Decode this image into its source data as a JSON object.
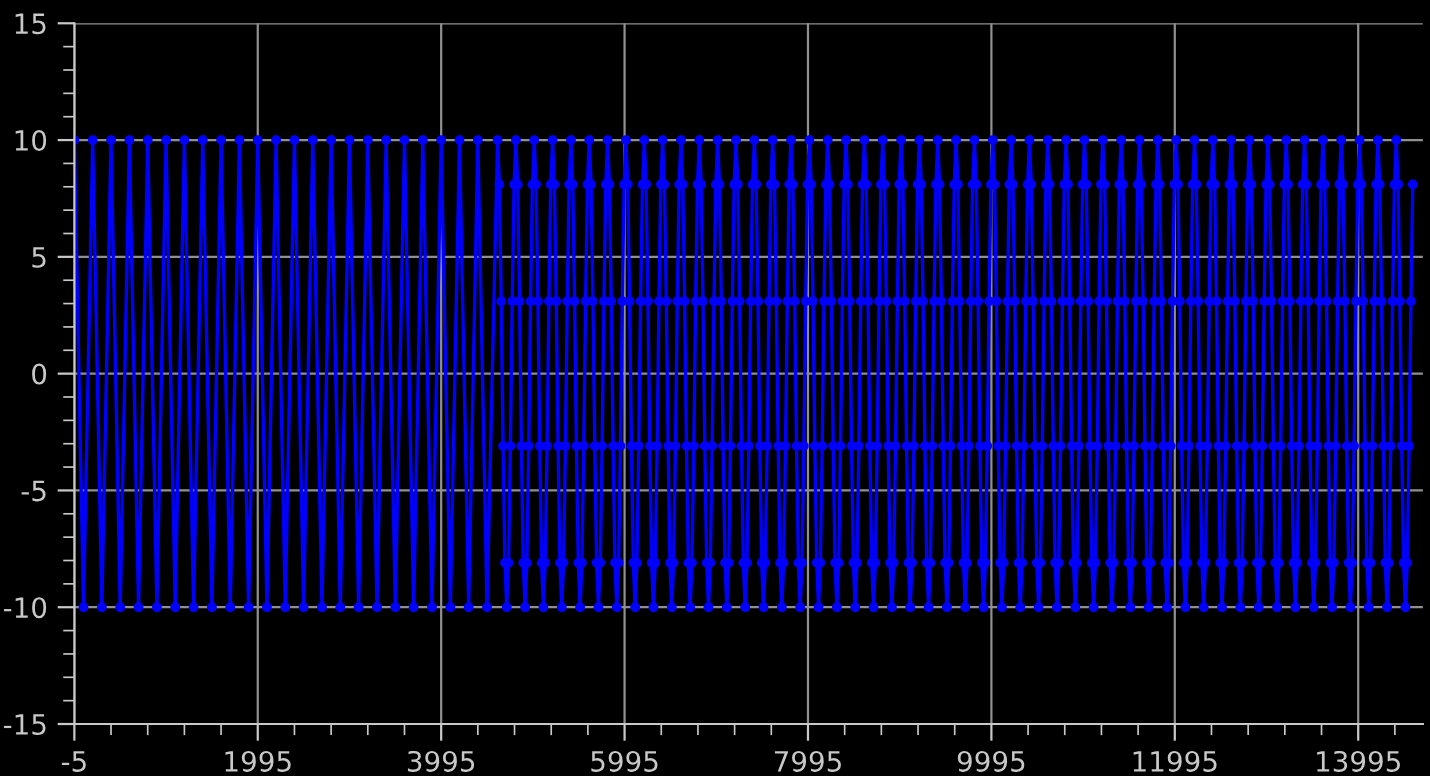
{
  "chart_data": {
    "type": "line",
    "xlim": [
      -5,
      14700
    ],
    "xticks": [
      -5,
      1995,
      3995,
      5995,
      7995,
      9995,
      11995,
      13995
    ],
    "ylim": [
      -15,
      15
    ],
    "yticks": [
      -15,
      -10,
      -5,
      0,
      5,
      10,
      15
    ],
    "grid": true,
    "marker": "circle",
    "line_style": "solid",
    "series": [
      {
        "color": "#0000ff",
        "x": [
          -5,
          95,
          195,
          295,
          395,
          495,
          595,
          695,
          795,
          895,
          995,
          1095,
          1195,
          1295,
          1395,
          1495,
          1595,
          1695,
          1795,
          1895,
          1995,
          2095,
          2195,
          2295,
          2395,
          2495,
          2595,
          2695,
          2795,
          2895,
          2995,
          3095,
          3195,
          3295,
          3395,
          3495,
          3595,
          3695,
          3795,
          3895,
          3995,
          4095,
          4195,
          4295,
          4395,
          4495,
          4610,
          4630,
          4650,
          4670,
          4690,
          4710,
          4730,
          4750,
          4770,
          4790,
          4810,
          4830,
          4850,
          4870,
          4890,
          4910,
          4930,
          4950,
          4970,
          4990,
          5010,
          5030,
          5050,
          5070,
          5090,
          5110,
          5130,
          5150,
          5170,
          5190,
          5210,
          5230,
          5250,
          5270,
          5290,
          5310,
          5330,
          5350,
          5370,
          5390,
          5410,
          5430,
          5450,
          5470,
          5490,
          5510,
          5530,
          5550,
          5570,
          5590,
          5610,
          5630,
          5650,
          5670,
          5690,
          5710,
          5730,
          5750,
          5770,
          5790,
          5810,
          5830,
          5850,
          5870,
          5890,
          5910,
          5930,
          5950,
          5970,
          5990,
          6010,
          6030,
          6050,
          6070,
          6090,
          6110,
          6130,
          6150,
          6170,
          6190,
          6210,
          6230,
          6250,
          6270,
          6290,
          6310,
          6330,
          6350,
          6370,
          6390,
          6410,
          6430,
          6450,
          6470,
          6490,
          6510,
          6530,
          6550,
          6570,
          6590,
          6610,
          6630,
          6650,
          6670,
          6690,
          6710,
          6730,
          6750,
          6770,
          6790,
          6810,
          6830,
          6850,
          6870,
          6890,
          6910,
          6930,
          6950,
          6970,
          6990,
          7010,
          7030,
          7050,
          7070,
          7090,
          7110,
          7130,
          7150,
          7170,
          7190,
          7210,
          7230,
          7250,
          7270,
          7290,
          7310,
          7330,
          7350,
          7370,
          7390,
          7410,
          7430,
          7450,
          7470,
          7490,
          7510,
          7530,
          7550,
          7570,
          7590,
          7610,
          7630,
          7650,
          7670,
          7690,
          7710,
          7730,
          7750,
          7770,
          7790,
          7810,
          7830,
          7850,
          7870,
          7890,
          7910,
          7930,
          7950,
          7970,
          7990,
          8010,
          8030,
          8050,
          8070,
          8090,
          8110,
          8130,
          8150,
          8170,
          8190,
          8210,
          8230,
          8250,
          8270,
          8290,
          8310,
          8330,
          8350,
          8370,
          8390,
          8410,
          8430,
          8450,
          8470,
          8490,
          8510,
          8530,
          8550,
          8570,
          8590,
          8610,
          8630,
          8650,
          8670,
          8690,
          8710,
          8730,
          8750,
          8770,
          8790,
          8810,
          8830,
          8850,
          8870,
          8890,
          8910,
          8930,
          8950,
          8970,
          8990,
          9010,
          9030,
          9050,
          9070,
          9090,
          9110,
          9130,
          9150,
          9170,
          9190,
          9210,
          9230,
          9250,
          9270,
          9290,
          9310,
          9330,
          9350,
          9370,
          9390,
          9410,
          9430,
          9450,
          9470,
          9490,
          9510,
          9530,
          9550,
          9570,
          9590,
          9610,
          9630,
          9650,
          9670,
          9690,
          9710,
          9730,
          9750,
          9770,
          9790,
          9810,
          9830,
          9850,
          9870,
          9890,
          9910,
          9930,
          9950,
          9970,
          9990,
          10010,
          10030,
          10050,
          10070,
          10090,
          10110,
          10130,
          10150,
          10170,
          10190,
          10210,
          10230,
          10250,
          10270,
          10290,
          10310,
          10330,
          10350,
          10370,
          10390,
          10410,
          10430,
          10450,
          10470,
          10490,
          10510,
          10530,
          10550,
          10570,
          10590,
          10610,
          10630,
          10650,
          10670,
          10690,
          10710,
          10730,
          10750,
          10770,
          10790,
          10810,
          10830,
          10850,
          10870,
          10890,
          10910,
          10930,
          10950,
          10970,
          10990,
          11010,
          11030,
          11050,
          11070,
          11090,
          11110,
          11130,
          11150,
          11170,
          11190,
          11210,
          11230,
          11250,
          11270,
          11290,
          11310,
          11330,
          11350,
          11370,
          11390,
          11410,
          11430,
          11450,
          11470,
          11490,
          11510,
          11530,
          11550,
          11570,
          11590,
          11610,
          11630,
          11650,
          11670,
          11690,
          11710,
          11730,
          11750,
          11770,
          11790,
          11810,
          11830,
          11850,
          11870,
          11890,
          11910,
          11930,
          11950,
          11970,
          11990,
          12010,
          12030,
          12050,
          12070,
          12090,
          12110,
          12130,
          12150,
          12170,
          12190,
          12210,
          12230,
          12250,
          12270,
          12290,
          12310,
          12330,
          12350,
          12370,
          12390,
          12410,
          12430,
          12450,
          12470,
          12490,
          12510,
          12530,
          12550,
          12570,
          12590,
          12610,
          12630,
          12650,
          12670,
          12690,
          12710,
          12730,
          12750,
          12770,
          12790,
          12810,
          12830,
          12850,
          12870,
          12890,
          12910,
          12930,
          12950,
          12970,
          12990,
          13010,
          13030,
          13050,
          13070,
          13090,
          13110,
          13130,
          13150,
          13170,
          13190,
          13210,
          13230,
          13250,
          13270,
          13290,
          13310,
          13330,
          13350,
          13370,
          13390,
          13410,
          13430,
          13450,
          13470,
          13490,
          13510,
          13530,
          13550,
          13570,
          13590,
          13610,
          13630,
          13650,
          13670,
          13690,
          13710,
          13730,
          13750,
          13770,
          13790,
          13810,
          13830,
          13850,
          13870,
          13890,
          13910,
          13930,
          13950,
          13970,
          13990,
          14010,
          14030,
          14050,
          14070,
          14090,
          14110,
          14130,
          14150,
          14170,
          14190,
          14210,
          14230,
          14250,
          14270,
          14290,
          14310,
          14330,
          14350,
          14370,
          14390,
          14410,
          14430,
          14450,
          14470,
          14490,
          14510,
          14530,
          14550,
          14570,
          14590
        ],
        "values": [
          10,
          -10,
          10,
          -10,
          10,
          -10,
          10,
          -10,
          10,
          -10,
          10,
          -10,
          10,
          -10,
          10,
          -10,
          10,
          -10,
          10,
          -10,
          10,
          -10,
          10,
          -10,
          10,
          -10,
          10,
          -10,
          10,
          -10,
          10,
          -10,
          10,
          -10,
          10,
          -10,
          10,
          -10,
          10,
          -10,
          10,
          -10,
          10,
          -10,
          10,
          -10,
          10,
          8.1,
          3.1,
          -3.1,
          -8.1,
          -10,
          -8.1,
          -3.1,
          3.1,
          8.1,
          10,
          8.1,
          3.1,
          -3.1,
          -8.1,
          -10,
          -8.1,
          -3.1,
          3.1,
          8.1,
          10,
          8.1,
          3.1,
          -3.1,
          -8.1,
          -10,
          -8.1,
          -3.1,
          3.1,
          8.1,
          10,
          8.1,
          3.1,
          -3.1,
          -8.1,
          -10,
          -8.1,
          -3.1,
          3.1,
          8.1,
          10,
          8.1,
          3.1,
          -3.1,
          -8.1,
          -10,
          -8.1,
          -3.1,
          3.1,
          8.1,
          10,
          8.1,
          3.1,
          -3.1,
          -8.1,
          -10,
          -8.1,
          -3.1,
          3.1,
          8.1,
          10,
          8.1,
          3.1,
          -3.1,
          -8.1,
          -10,
          -8.1,
          -3.1,
          3.1,
          8.1,
          10,
          8.1,
          3.1,
          -3.1,
          -8.1,
          -10,
          -8.1,
          -3.1,
          3.1,
          8.1,
          10,
          8.1,
          3.1,
          -3.1,
          -8.1,
          -10,
          -8.1,
          -3.1,
          3.1,
          8.1,
          10,
          8.1,
          3.1,
          -3.1,
          -8.1,
          -10,
          -8.1,
          -3.1,
          3.1,
          8.1,
          10,
          8.1,
          3.1,
          -3.1,
          -8.1,
          -10,
          -8.1,
          -3.1,
          3.1,
          8.1,
          10,
          8.1,
          3.1,
          -3.1,
          -8.1,
          -10,
          -8.1,
          -3.1,
          3.1,
          8.1,
          10,
          8.1,
          3.1,
          -3.1,
          -8.1,
          -10,
          -8.1,
          -3.1,
          3.1,
          8.1,
          10,
          8.1,
          3.1,
          -3.1,
          -8.1,
          -10,
          -8.1,
          -3.1,
          3.1,
          8.1,
          10,
          8.1,
          3.1,
          -3.1,
          -8.1,
          -10,
          -8.1,
          -3.1,
          3.1,
          8.1,
          10,
          8.1,
          3.1,
          -3.1,
          -8.1,
          -10,
          -8.1,
          -3.1,
          3.1,
          8.1,
          10,
          8.1,
          3.1,
          -3.1,
          -8.1,
          -10,
          -8.1,
          -3.1,
          3.1,
          8.1,
          10,
          8.1,
          3.1,
          -3.1,
          -8.1,
          -10,
          -8.1,
          -3.1,
          3.1,
          8.1,
          10,
          8.1,
          3.1,
          -3.1,
          -8.1,
          -10,
          -8.1,
          -3.1,
          3.1,
          8.1,
          10,
          8.1,
          3.1,
          -3.1,
          -8.1,
          -10,
          -8.1,
          -3.1,
          3.1,
          8.1,
          10,
          8.1,
          3.1,
          -3.1,
          -8.1,
          -10,
          -8.1,
          -3.1,
          3.1,
          8.1,
          10,
          8.1,
          3.1,
          -3.1,
          -8.1,
          -10,
          -8.1,
          -3.1,
          3.1,
          8.1,
          10,
          8.1,
          3.1,
          -3.1,
          -8.1,
          -10,
          -8.1,
          -3.1,
          3.1,
          8.1,
          10,
          8.1,
          3.1,
          -3.1,
          -8.1,
          -10,
          -8.1,
          -3.1,
          3.1,
          8.1,
          10,
          8.1,
          3.1,
          -3.1,
          -8.1,
          -10,
          -8.1,
          -3.1,
          3.1,
          8.1,
          10,
          8.1,
          3.1,
          -3.1,
          -8.1,
          -10,
          -8.1,
          -3.1,
          3.1,
          8.1,
          10,
          8.1,
          3.1,
          -3.1,
          -8.1,
          -10,
          -8.1,
          -3.1,
          3.1,
          8.1,
          10,
          8.1,
          3.1,
          -3.1,
          -8.1,
          -10,
          -8.1,
          -3.1,
          3.1,
          8.1,
          10,
          8.1,
          3.1,
          -3.1,
          -8.1,
          -10,
          -8.1,
          -3.1,
          3.1,
          8.1,
          10,
          8.1,
          3.1,
          -3.1,
          -8.1,
          -10,
          -8.1,
          -3.1,
          3.1,
          8.1,
          10,
          8.1,
          3.1,
          -3.1,
          -8.1,
          -10,
          -8.1,
          -3.1,
          3.1,
          8.1,
          10,
          8.1,
          3.1,
          -3.1,
          -8.1,
          -10,
          -8.1,
          -3.1,
          3.1,
          8.1,
          10,
          8.1,
          3.1,
          -3.1,
          -8.1,
          -10,
          -8.1,
          -3.1,
          3.1,
          8.1,
          10,
          8.1,
          3.1,
          -3.1,
          -8.1,
          -10,
          -8.1,
          -3.1,
          3.1,
          8.1,
          10,
          8.1,
          3.1,
          -3.1,
          -8.1,
          -10,
          -8.1,
          -3.1,
          3.1,
          8.1,
          10,
          8.1,
          3.1,
          -3.1,
          -8.1,
          -10,
          -8.1,
          -3.1,
          3.1,
          8.1,
          10,
          8.1,
          3.1,
          -3.1,
          -8.1,
          -10,
          -8.1,
          -3.1,
          3.1,
          8.1,
          10,
          8.1,
          3.1,
          -3.1,
          -8.1,
          -10,
          -8.1,
          -3.1,
          3.1,
          8.1,
          10,
          8.1,
          3.1,
          -3.1,
          -8.1,
          -10,
          -8.1,
          -3.1,
          3.1,
          8.1,
          10,
          8.1,
          3.1,
          -3.1,
          -8.1,
          -10,
          -8.1,
          -3.1,
          3.1,
          8.1,
          10,
          8.1,
          3.1,
          -3.1,
          -8.1,
          -10,
          -8.1,
          -3.1,
          3.1,
          8.1,
          10,
          8.1,
          3.1,
          -3.1,
          -8.1,
          -10,
          -8.1,
          -3.1,
          3.1,
          8.1,
          10,
          8.1,
          3.1,
          -3.1,
          -8.1,
          -10,
          -8.1,
          -3.1,
          3.1,
          8.1,
          10,
          8.1,
          3.1,
          -3.1,
          -8.1,
          -10,
          -8.1,
          -3.1,
          3.1,
          8.1,
          10,
          8.1,
          3.1,
          -3.1,
          -8.1,
          -10,
          -8.1,
          -3.1,
          3.1,
          8.1,
          10,
          8.1,
          3.1,
          -3.1,
          -8.1,
          -10,
          -8.1,
          -3.1,
          3.1,
          8.1,
          10,
          8.1,
          3.1,
          -3.1,
          -8.1,
          -10,
          -8.1,
          -3.1,
          3.1,
          8.1,
          10,
          8.1,
          3.1,
          -3.1,
          -8.1,
          -10,
          -8.1,
          -3.1,
          3.1,
          8.1,
          10,
          8.1,
          3.1,
          -3.1,
          -8.1,
          -10,
          -8.1,
          -3.1,
          3.1,
          8.1,
          10,
          8.1,
          3.1,
          -3.1,
          -8.1,
          -10,
          -8.1,
          -3.1,
          3.1,
          8.1
        ]
      }
    ]
  }
}
